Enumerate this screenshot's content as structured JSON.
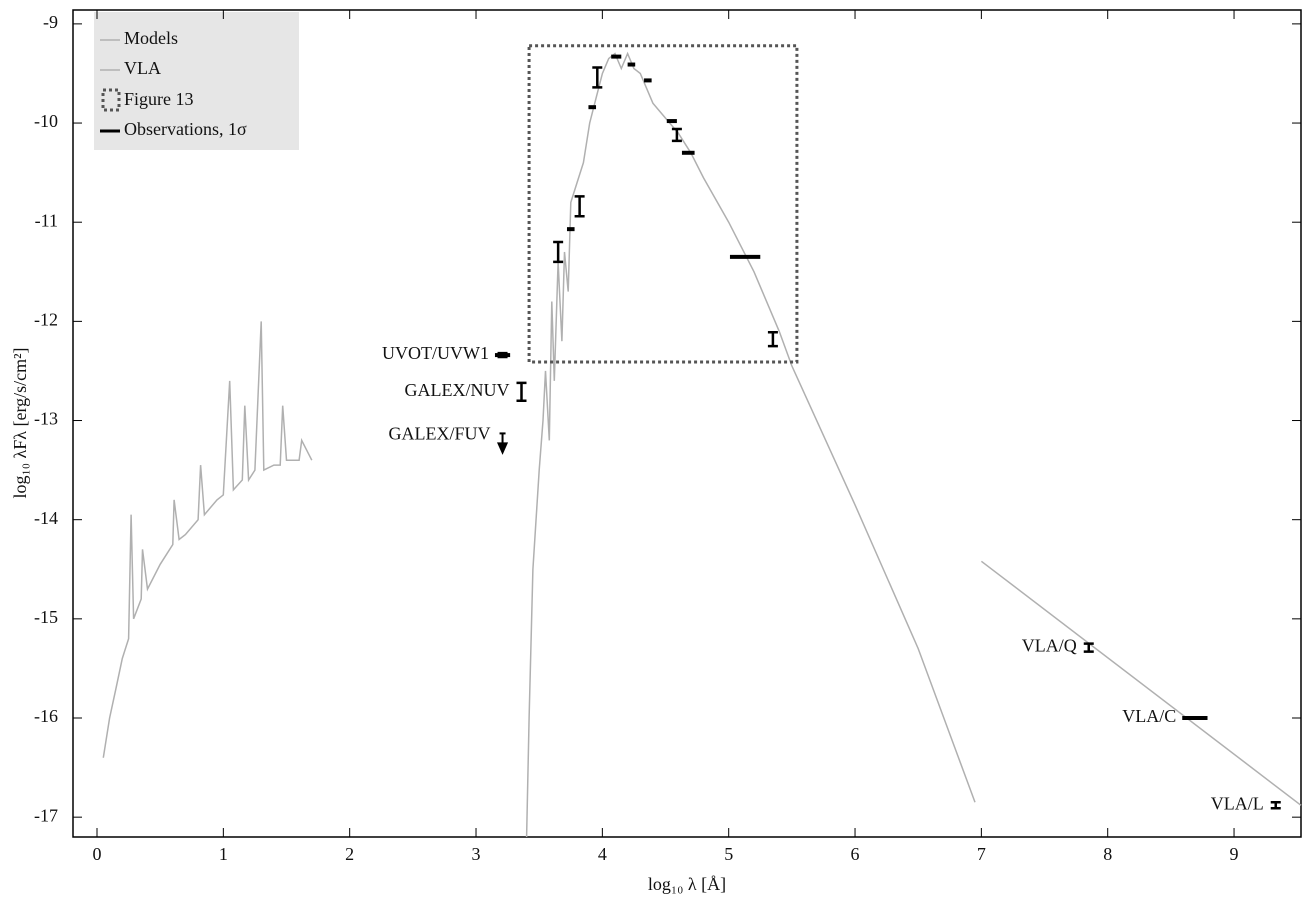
{
  "chart_data": {
    "type": "sed",
    "x_label": "log₁₀ λ [Å]",
    "y_label": "log₁₀ λFλ [erg/s/cm²]",
    "xlim": [
      -0.19,
      9.53
    ],
    "ylim": [
      -17.2,
      -8.86
    ],
    "xticks": [
      0,
      1,
      2,
      3,
      4,
      5,
      6,
      7,
      8,
      9
    ],
    "yticks": [
      -9,
      -10,
      -11,
      -12,
      -13,
      -14,
      -15,
      -16,
      -17
    ],
    "legend": "upper left",
    "series": [
      {
        "name": "Models",
        "color": "#b0b0b0",
        "x": [
          0.05,
          0.1,
          0.15,
          0.2,
          0.25,
          0.27,
          0.29,
          0.35,
          0.36,
          0.4,
          0.5,
          0.6,
          0.61,
          0.65,
          0.7,
          0.8,
          0.82,
          0.85,
          0.95,
          1.0,
          1.05,
          1.08,
          1.15,
          1.17,
          1.2,
          1.25,
          1.3,
          1.32,
          1.4,
          1.45,
          1.47,
          1.5,
          1.6,
          1.62,
          1.7,
          null,
          3.4,
          3.42,
          3.45,
          3.5,
          3.53,
          3.55,
          3.58,
          3.6,
          3.62,
          3.65,
          3.68,
          3.7,
          3.73,
          3.75,
          3.8,
          3.85,
          3.9,
          3.95,
          4.0,
          4.05,
          4.1,
          4.15,
          4.2,
          4.25,
          4.3,
          4.4,
          4.5,
          4.6,
          4.7,
          4.8,
          5.0,
          5.2,
          5.4,
          5.5,
          6.0,
          6.5,
          6.95
        ],
        "values": [
          -16.4,
          -16.0,
          -15.7,
          -15.4,
          -15.2,
          -13.95,
          -15.0,
          -14.8,
          -14.3,
          -14.7,
          -14.45,
          -14.25,
          -13.8,
          -14.2,
          -14.15,
          -14.0,
          -13.45,
          -13.95,
          -13.8,
          -13.75,
          -12.6,
          -13.7,
          -13.6,
          -12.85,
          -13.6,
          -13.5,
          -12.0,
          -13.5,
          -13.45,
          -13.45,
          -12.85,
          -13.4,
          -13.4,
          -13.2,
          -13.4,
          null,
          -17.2,
          -16.0,
          -14.5,
          -13.5,
          -13.0,
          -12.5,
          -13.2,
          -11.8,
          -12.6,
          -11.4,
          -12.2,
          -11.3,
          -11.7,
          -10.8,
          -10.6,
          -10.4,
          -10.0,
          -9.75,
          -9.5,
          -9.35,
          -9.3,
          -9.45,
          -9.3,
          -9.45,
          -9.5,
          -9.8,
          -9.95,
          -10.1,
          -10.3,
          -10.55,
          -11.0,
          -11.5,
          -12.1,
          -12.45,
          -13.85,
          -15.3,
          -16.85
        ]
      },
      {
        "name": "VLA",
        "color": "#b0b0b0",
        "x": [
          7.0,
          9.53
        ],
        "values": [
          -14.42,
          -16.88
        ]
      }
    ],
    "box": {
      "name": "Figure 13",
      "color": "#555555",
      "x": [
        3.42,
        5.54
      ],
      "y": [
        -12.41,
        -9.22
      ]
    },
    "observations_name": "Observations, 1σ",
    "observations_color": "#000000",
    "observations": [
      {
        "label": "UVOT/UVW1",
        "x": 3.21,
        "xerr": 0.06,
        "y": -12.34,
        "yerr": 0.02
      },
      {
        "label": "GALEX/NUV",
        "x": 3.36,
        "y": -12.71,
        "yerr": 0.09
      },
      {
        "label": "GALEX/FUV",
        "x": 3.21,
        "y": -13.13,
        "upper_limit": true
      },
      {
        "x": 3.65,
        "y": -11.3,
        "yerr": 0.1
      },
      {
        "x": 3.75,
        "xerr": 0.03,
        "y": -11.07
      },
      {
        "x": 3.82,
        "y": -10.84,
        "yerr": 0.1
      },
      {
        "x": 3.92,
        "xerr": 0.03,
        "y": -9.84
      },
      {
        "x": 3.96,
        "y": -9.54,
        "yerr": 0.1
      },
      {
        "x": 4.11,
        "xerr": 0.04,
        "y": -9.33
      },
      {
        "x": 4.23,
        "xerr": 0.03,
        "y": -9.41
      },
      {
        "x": 4.36,
        "xerr": 0.03,
        "y": -9.57
      },
      {
        "x": 4.55,
        "xerr": 0.04,
        "y": -9.98
      },
      {
        "x": 4.59,
        "y": -10.12,
        "yerr": 0.06
      },
      {
        "x": 4.68,
        "xerr": 0.05,
        "y": -10.3
      },
      {
        "x": 5.13,
        "xerr": 0.12,
        "y": -11.35
      },
      {
        "x": 5.35,
        "y": -12.18,
        "yerr": 0.07
      },
      {
        "label": "VLA/Q",
        "x": 7.85,
        "y": -15.29,
        "yerr": 0.04
      },
      {
        "label": "VLA/C",
        "x": 8.69,
        "xerr": 0.1,
        "y": -16.0
      },
      {
        "label": "VLA/L",
        "x": 9.33,
        "y": -16.88,
        "yerr": 0.03
      }
    ]
  }
}
